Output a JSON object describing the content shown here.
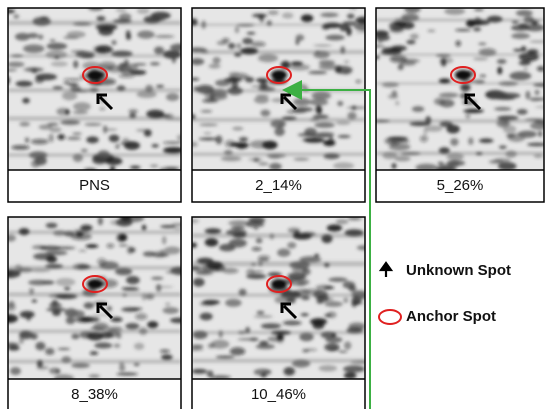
{
  "panels": [
    {
      "label": "PNS"
    },
    {
      "label": "2_14%"
    },
    {
      "label": "5_26%"
    },
    {
      "label": "8_38%"
    },
    {
      "label": "10_46%"
    }
  ],
  "legend": {
    "unknown": "Unknown Spot",
    "anchor": "Anchor Spot"
  }
}
